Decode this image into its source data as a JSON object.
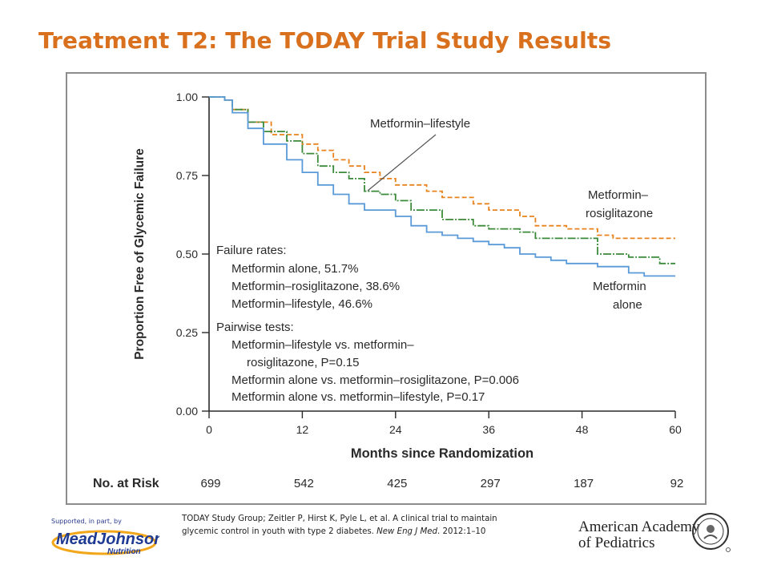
{
  "slide": {
    "title": "Treatment T2: The TODAY Trial Study Results"
  },
  "citation": {
    "line1": "TODAY Study Group; Zeitler P, Hirst K, Pyle L, et al. A clinical trial to maintain",
    "line2_plain": "glycemic control in youth with type 2 diabetes. ",
    "journal": "New Eng J Med",
    "line2_end": ". 2012:1–10"
  },
  "sponsor": {
    "caption": "Supported, in part, by",
    "brand_main": "MeadJohnson",
    "brand_sub": "Nutrition"
  },
  "aap": {
    "line1": "American Academy",
    "line2": "of Pediatrics"
  },
  "chart_data": {
    "type": "line",
    "ylabel": "Proportion Free of Glycemic Failure",
    "xlabel": "Months since Randomization",
    "xlim": [
      0,
      60
    ],
    "ylim": [
      0,
      1
    ],
    "x_ticks": [
      "0",
      "12",
      "24",
      "36",
      "48",
      "60"
    ],
    "y_ticks": [
      "0.00",
      "0.25",
      "0.50",
      "0.75",
      "1.00"
    ],
    "colors": {
      "metformin_rosiglitazone": "#e8821c",
      "metformin_lifestyle": "#3a8a3a",
      "metformin_alone": "#5a9ad8",
      "text": "#2a2a2a"
    },
    "series": [
      {
        "name": "Metformin–rosiglitazone",
        "color": "#e8821c",
        "dash": "6,3",
        "points": [
          [
            0,
            1.0
          ],
          [
            2,
            0.99
          ],
          [
            3,
            0.96
          ],
          [
            5,
            0.92
          ],
          [
            8,
            0.88
          ],
          [
            12,
            0.85
          ],
          [
            14,
            0.83
          ],
          [
            16,
            0.8
          ],
          [
            18,
            0.78
          ],
          [
            20,
            0.76
          ],
          [
            22,
            0.74
          ],
          [
            24,
            0.72
          ],
          [
            28,
            0.7
          ],
          [
            30,
            0.68
          ],
          [
            34,
            0.66
          ],
          [
            36,
            0.64
          ],
          [
            40,
            0.62
          ],
          [
            42,
            0.59
          ],
          [
            46,
            0.58
          ],
          [
            50,
            0.56
          ],
          [
            52,
            0.55
          ],
          [
            60,
            0.55
          ]
        ]
      },
      {
        "name": "Metformin–lifestyle",
        "color": "#3a8a3a",
        "dash": "10,2,2,2",
        "points": [
          [
            0,
            1.0
          ],
          [
            2,
            0.99
          ],
          [
            3,
            0.96
          ],
          [
            5,
            0.92
          ],
          [
            7,
            0.89
          ],
          [
            10,
            0.86
          ],
          [
            12,
            0.82
          ],
          [
            14,
            0.78
          ],
          [
            16,
            0.76
          ],
          [
            18,
            0.74
          ],
          [
            20,
            0.7
          ],
          [
            22,
            0.69
          ],
          [
            24,
            0.67
          ],
          [
            26,
            0.64
          ],
          [
            30,
            0.61
          ],
          [
            34,
            0.59
          ],
          [
            36,
            0.58
          ],
          [
            40,
            0.57
          ],
          [
            42,
            0.55
          ],
          [
            46,
            0.55
          ],
          [
            50,
            0.5
          ],
          [
            54,
            0.49
          ],
          [
            58,
            0.47
          ],
          [
            60,
            0.47
          ]
        ]
      },
      {
        "name": "Metformin alone",
        "color": "#5a9ad8",
        "dash": "",
        "points": [
          [
            0,
            1.0
          ],
          [
            2,
            0.99
          ],
          [
            3,
            0.95
          ],
          [
            5,
            0.9
          ],
          [
            7,
            0.85
          ],
          [
            10,
            0.8
          ],
          [
            12,
            0.76
          ],
          [
            14,
            0.72
          ],
          [
            16,
            0.69
          ],
          [
            18,
            0.66
          ],
          [
            20,
            0.64
          ],
          [
            24,
            0.62
          ],
          [
            26,
            0.59
          ],
          [
            28,
            0.57
          ],
          [
            30,
            0.56
          ],
          [
            32,
            0.55
          ],
          [
            34,
            0.54
          ],
          [
            36,
            0.53
          ],
          [
            38,
            0.52
          ],
          [
            40,
            0.5
          ],
          [
            42,
            0.49
          ],
          [
            44,
            0.48
          ],
          [
            46,
            0.47
          ],
          [
            50,
            0.46
          ],
          [
            54,
            0.44
          ],
          [
            56,
            0.43
          ],
          [
            60,
            0.43
          ]
        ]
      }
    ],
    "annotations": {
      "callout": "Metformin–lifestyle",
      "label_rosi": [
        "Metformin–",
        "rosiglitazone"
      ],
      "label_alone": [
        "Metformin",
        "alone"
      ],
      "failure_rates_header": "Failure rates:",
      "failure_rates": [
        "Metformin alone, 51.7%",
        "Metformin–rosiglitazone, 38.6%",
        "Metformin–lifestyle, 46.6%"
      ],
      "pairwise_header": "Pairwise tests:",
      "pairwise": [
        "Metformin–lifestyle vs. metformin–",
        "rosiglitazone, P=0.15",
        "Metformin alone vs. metformin–rosiglitazone, P=0.006",
        "Metformin alone vs. metformin–lifestyle, P=0.17"
      ]
    },
    "at_risk": {
      "label": "No. at Risk",
      "values": [
        "699",
        "542",
        "425",
        "297",
        "187",
        "92"
      ]
    }
  }
}
